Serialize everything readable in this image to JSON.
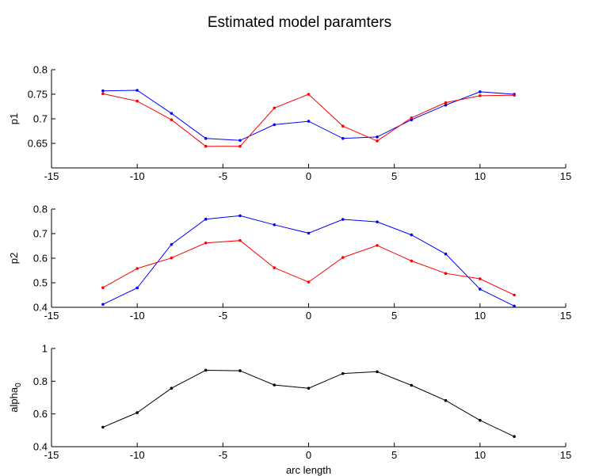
{
  "figure": {
    "title": "Estimated model paramters"
  },
  "chart_data": [
    {
      "type": "line",
      "ylabel": "p1",
      "xlim": [
        -15,
        15
      ],
      "ylim": [
        0.6,
        0.8
      ],
      "xticks": [
        "-15",
        "-10",
        "-5",
        "0",
        "5",
        "10",
        "15"
      ],
      "yticks": [
        "0.65",
        "0.7",
        "0.75",
        "0.8"
      ],
      "x": [
        -12,
        -10,
        -8,
        -6,
        -4,
        -2,
        0,
        2,
        4,
        6,
        8,
        10,
        12
      ],
      "series": [
        {
          "color": "#0000ff",
          "values": [
            0.757,
            0.758,
            0.711,
            0.66,
            0.656,
            0.688,
            0.695,
            0.66,
            0.663,
            0.698,
            0.728,
            0.755,
            0.75
          ]
        },
        {
          "color": "#ff0000",
          "values": [
            0.751,
            0.736,
            0.698,
            0.644,
            0.644,
            0.722,
            0.75,
            0.685,
            0.655,
            0.702,
            0.733,
            0.747,
            0.748
          ]
        }
      ]
    },
    {
      "type": "line",
      "ylabel": "p2",
      "xlim": [
        -15,
        15
      ],
      "ylim": [
        0.4,
        0.8
      ],
      "xticks": [
        "-15",
        "-10",
        "-5",
        "0",
        "5",
        "10",
        "15"
      ],
      "yticks": [
        "0.4",
        "0.5",
        "0.6",
        "0.7",
        "0.8"
      ],
      "x": [
        -12,
        -10,
        -8,
        -6,
        -4,
        -2,
        0,
        2,
        4,
        6,
        8,
        10,
        12
      ],
      "series": [
        {
          "color": "#0000ff",
          "values": [
            0.412,
            0.479,
            0.656,
            0.759,
            0.773,
            0.736,
            0.702,
            0.758,
            0.748,
            0.695,
            0.617,
            0.474,
            0.405
          ]
        },
        {
          "color": "#ff0000",
          "values": [
            0.48,
            0.558,
            0.601,
            0.662,
            0.672,
            0.561,
            0.503,
            0.603,
            0.652,
            0.589,
            0.538,
            0.516,
            0.45
          ]
        }
      ]
    },
    {
      "type": "line",
      "ylabel": "alpha",
      "ylabel_sub": "0",
      "xlabel": "arc length",
      "xlim": [
        -15,
        15
      ],
      "ylim": [
        0.4,
        1.0
      ],
      "xticks": [
        "-15",
        "-10",
        "-5",
        "0",
        "5",
        "10",
        "15"
      ],
      "yticks": [
        "0.4",
        "0.6",
        "0.8",
        "1"
      ],
      "x": [
        -12,
        -10,
        -8,
        -6,
        -4,
        -2,
        0,
        2,
        4,
        6,
        8,
        10,
        12
      ],
      "series": [
        {
          "color": "#000000",
          "values": [
            0.519,
            0.608,
            0.757,
            0.867,
            0.864,
            0.777,
            0.757,
            0.847,
            0.858,
            0.775,
            0.682,
            0.561,
            0.462
          ]
        }
      ]
    }
  ]
}
